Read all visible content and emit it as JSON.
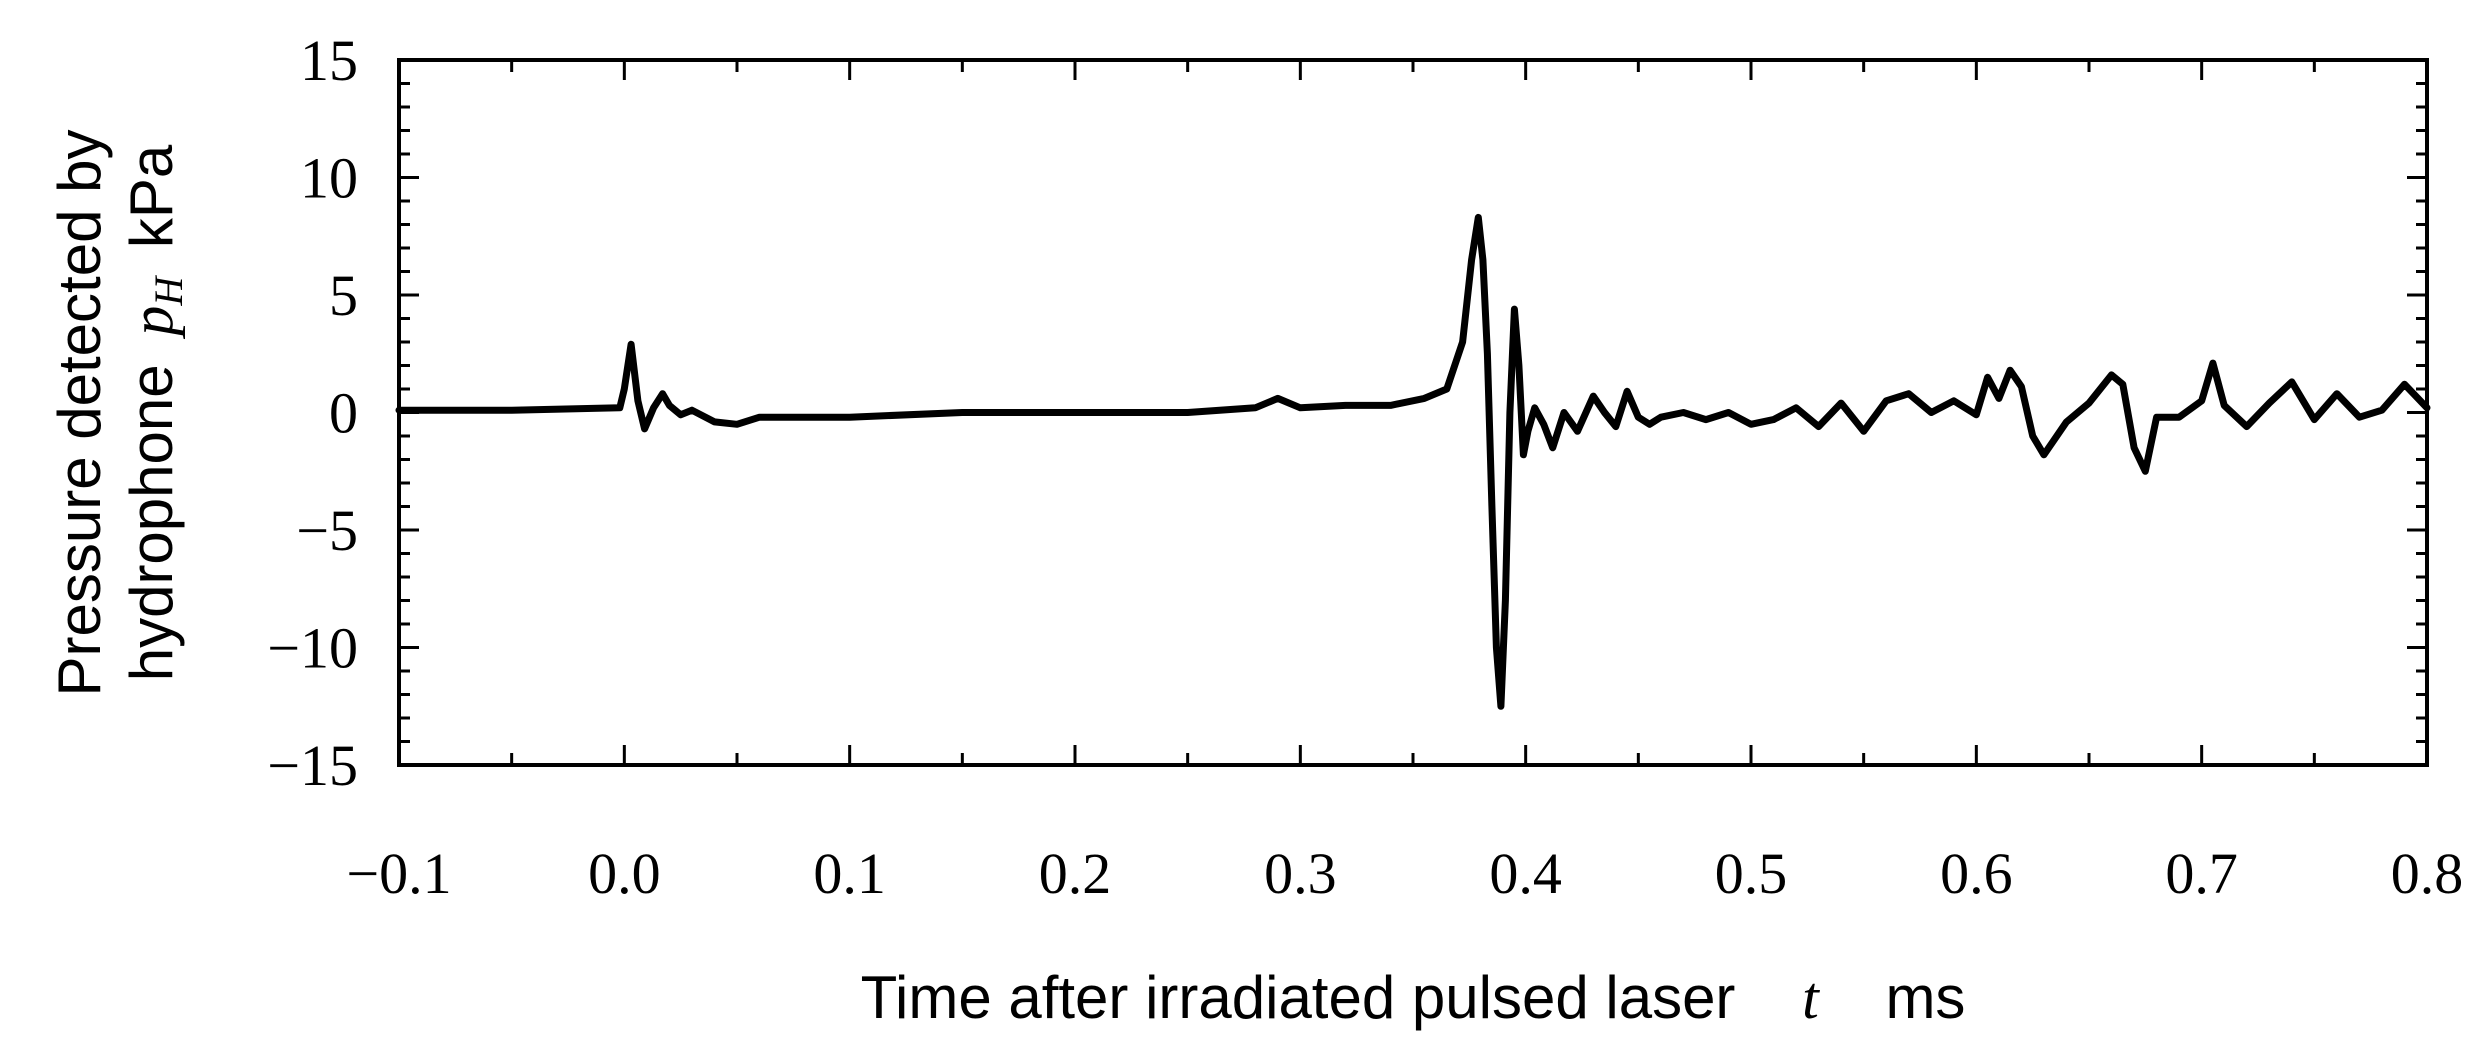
{
  "chart_data": {
    "type": "line",
    "title": "",
    "xlabel": {
      "text": "Time after irradiated pulsed laser",
      "symbol": "t",
      "unit": "ms"
    },
    "ylabel": {
      "line1": "Pressure detected by",
      "line2_prefix": "hydrophone",
      "symbol": "p",
      "subscript": "H",
      "unit": "kPa"
    },
    "xlim": [
      -0.1,
      0.8
    ],
    "ylim": [
      -15,
      15
    ],
    "x_ticks": [
      -0.1,
      0.0,
      0.1,
      0.2,
      0.3,
      0.4,
      0.5,
      0.6,
      0.7,
      0.8
    ],
    "x_tick_labels": [
      "−0.1",
      "0.0",
      "0.1",
      "0.2",
      "0.3",
      "0.4",
      "0.5",
      "0.6",
      "0.7",
      "0.8"
    ],
    "y_ticks": [
      15,
      10,
      5,
      0,
      -5,
      -10,
      -15
    ],
    "y_tick_labels": [
      "15",
      "10",
      "5",
      "0",
      "−5",
      "−10",
      "−15"
    ],
    "grid": false,
    "legend": "none",
    "line_color": "#000000",
    "series": [
      {
        "x": [
          -0.1,
          -0.05,
          -0.002,
          0.0,
          0.003,
          0.006,
          0.009,
          0.013,
          0.017,
          0.02,
          0.025,
          0.03,
          0.04,
          0.05,
          0.06,
          0.08,
          0.1,
          0.15,
          0.2,
          0.25,
          0.28,
          0.29,
          0.3,
          0.32,
          0.34,
          0.355,
          0.365,
          0.372,
          0.376,
          0.379,
          0.381,
          0.383,
          0.385,
          0.387,
          0.389,
          0.391,
          0.393,
          0.395,
          0.397,
          0.399,
          0.401,
          0.404,
          0.408,
          0.412,
          0.417,
          0.423,
          0.43,
          0.435,
          0.44,
          0.445,
          0.45,
          0.455,
          0.46,
          0.47,
          0.48,
          0.49,
          0.5,
          0.51,
          0.52,
          0.53,
          0.54,
          0.55,
          0.56,
          0.57,
          0.58,
          0.59,
          0.6,
          0.605,
          0.61,
          0.615,
          0.62,
          0.625,
          0.63,
          0.64,
          0.65,
          0.66,
          0.665,
          0.67,
          0.675,
          0.68,
          0.69,
          0.7,
          0.705,
          0.71,
          0.72,
          0.73,
          0.74,
          0.75,
          0.76,
          0.77,
          0.78,
          0.79,
          0.8
        ],
        "y": [
          0.1,
          0.1,
          0.2,
          1.0,
          2.9,
          0.5,
          -0.7,
          0.2,
          0.8,
          0.3,
          -0.1,
          0.1,
          -0.4,
          -0.5,
          -0.2,
          -0.2,
          -0.2,
          0.0,
          0.0,
          0.0,
          0.2,
          0.6,
          0.2,
          0.3,
          0.3,
          0.6,
          1.0,
          3.0,
          6.5,
          8.3,
          6.5,
          2.5,
          -4.0,
          -10.0,
          -12.5,
          -8.0,
          0.0,
          4.4,
          2.0,
          -1.8,
          -0.8,
          0.2,
          -0.5,
          -1.5,
          0.0,
          -0.8,
          0.7,
          0.0,
          -0.6,
          0.9,
          -0.2,
          -0.5,
          -0.2,
          0.0,
          -0.3,
          0.0,
          -0.5,
          -0.3,
          0.2,
          -0.6,
          0.4,
          -0.8,
          0.5,
          0.8,
          0.0,
          0.5,
          -0.1,
          1.5,
          0.6,
          1.8,
          1.1,
          -1.0,
          -1.8,
          -0.4,
          0.4,
          1.6,
          1.2,
          -1.5,
          -2.5,
          -0.2,
          -0.2,
          0.5,
          2.1,
          0.3,
          -0.6,
          0.4,
          1.3,
          -0.3,
          0.8,
          -0.2,
          0.1,
          1.2,
          0.2
        ]
      }
    ]
  }
}
